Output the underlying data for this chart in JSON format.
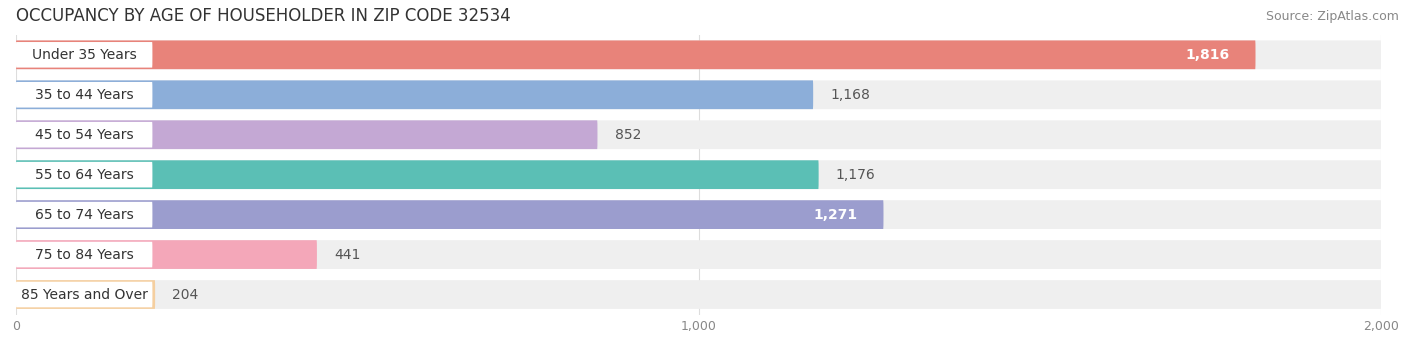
{
  "title": "OCCUPANCY BY AGE OF HOUSEHOLDER IN ZIP CODE 32534",
  "source": "Source: ZipAtlas.com",
  "categories": [
    "Under 35 Years",
    "35 to 44 Years",
    "45 to 54 Years",
    "55 to 64 Years",
    "65 to 74 Years",
    "75 to 84 Years",
    "85 Years and Over"
  ],
  "values": [
    1816,
    1168,
    852,
    1176,
    1271,
    441,
    204
  ],
  "bar_colors": [
    "#E8837A",
    "#8CAED9",
    "#C4A8D4",
    "#5BBFB5",
    "#9B9DCE",
    "#F4A7B9",
    "#F5CFA0"
  ],
  "value_text_colors": [
    "white",
    "#555555",
    "#555555",
    "#555555",
    "white",
    "#555555",
    "#555555"
  ],
  "value_inside": [
    true,
    false,
    false,
    false,
    true,
    false,
    false
  ],
  "bar_bg_color": "#EFEFEF",
  "xlim": [
    0,
    2000
  ],
  "xticks": [
    0,
    1000,
    2000
  ],
  "xticklabels": [
    "0",
    "1,000",
    "2,000"
  ],
  "title_fontsize": 12,
  "source_fontsize": 9,
  "label_fontsize": 10,
  "value_fontsize": 10,
  "background_color": "#FFFFFF",
  "grid_color": "#DDDDDD"
}
